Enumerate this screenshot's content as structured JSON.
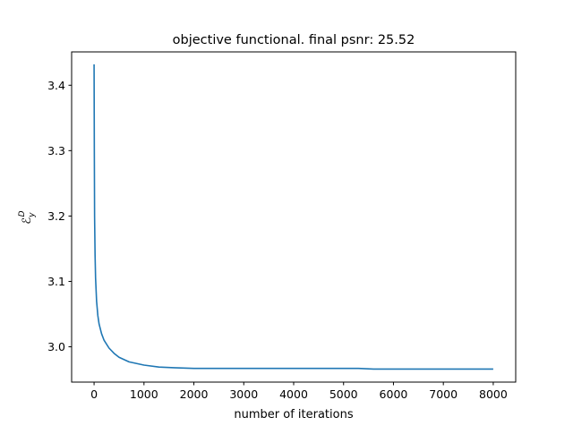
{
  "chart_data": {
    "type": "line",
    "title": "objective functional. final psnr: 25.52",
    "xlabel": "number of iterations",
    "ylabel_main": "ℰ",
    "ylabel_sub": "y",
    "ylabel_sup": "D",
    "xlim": [
      -450,
      8450
    ],
    "ylim": [
      2.946,
      3.451
    ],
    "xticks": [
      0,
      1000,
      2000,
      3000,
      4000,
      5000,
      6000,
      7000,
      8000
    ],
    "xtick_labels": [
      "0",
      "1000",
      "2000",
      "3000",
      "4000",
      "5000",
      "6000",
      "7000",
      "8000"
    ],
    "yticks": [
      3.0,
      3.1,
      3.2,
      3.3,
      3.4
    ],
    "ytick_labels": [
      "3.0",
      "3.1",
      "3.2",
      "3.3",
      "3.4"
    ],
    "grid": false,
    "legend": "none",
    "series": [
      {
        "color": "#1f77b4",
        "x": [
          0,
          5,
          10,
          20,
          30,
          50,
          75,
          100,
          150,
          200,
          300,
          400,
          500,
          700,
          1000,
          1300,
          1600,
          2000,
          2500,
          3000,
          4000,
          5000,
          5300,
          5600,
          6000,
          7000,
          8000
        ],
        "y": [
          3.432,
          3.3,
          3.2,
          3.14,
          3.105,
          3.07,
          3.048,
          3.035,
          3.02,
          3.01,
          2.998,
          2.99,
          2.984,
          2.977,
          2.972,
          2.969,
          2.968,
          2.967,
          2.967,
          2.967,
          2.967,
          2.967,
          2.967,
          2.966,
          2.966,
          2.966,
          2.966
        ]
      }
    ]
  }
}
